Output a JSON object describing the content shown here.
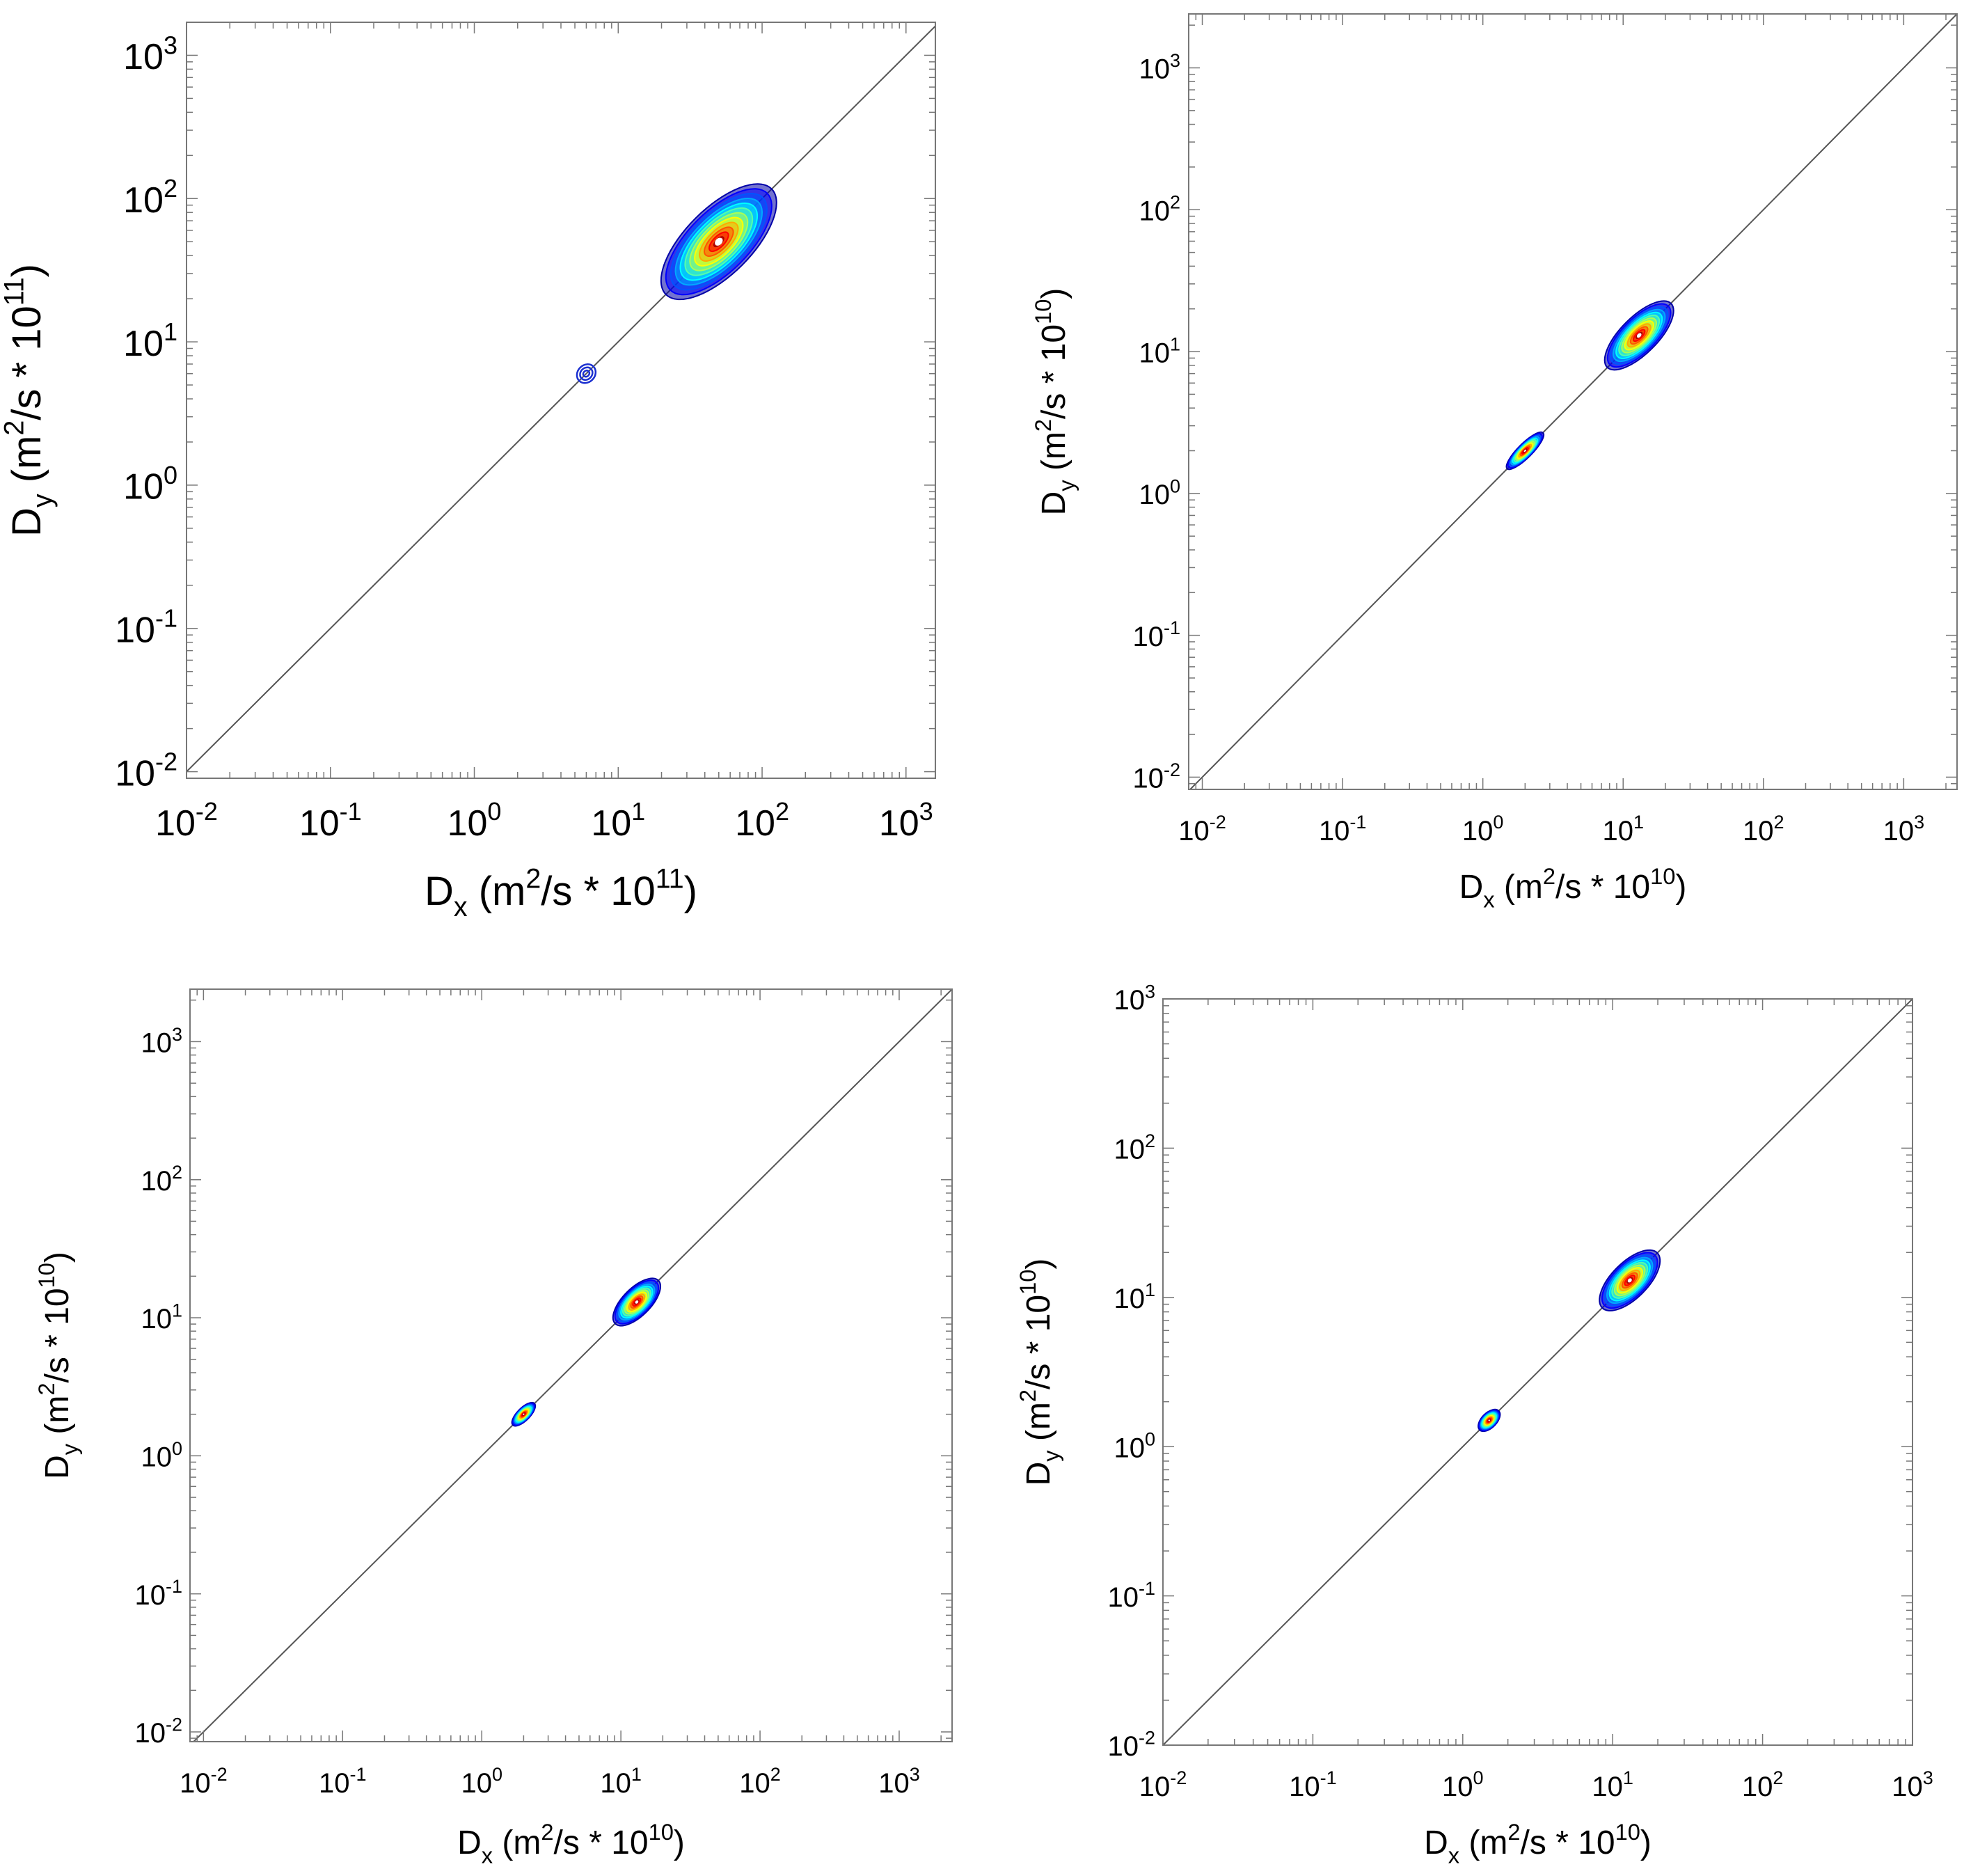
{
  "chart_data": [
    {
      "type": "contour",
      "scale": "log-log",
      "xlim": [
        0.01,
        1600
      ],
      "ylim": [
        0.009,
        1700
      ],
      "xticks": [
        0.01,
        0.1,
        1,
        10,
        100,
        1000
      ],
      "yticks": [
        0.01,
        0.1,
        1,
        10,
        100,
        1000
      ],
      "xtick_labels": [
        {
          "base": "10",
          "exp": "-2"
        },
        {
          "base": "10",
          "exp": "-1"
        },
        {
          "base": "10",
          "exp": "0"
        },
        {
          "base": "10",
          "exp": "1"
        },
        {
          "base": "10",
          "exp": "2"
        },
        {
          "base": "10",
          "exp": "3"
        }
      ],
      "ytick_labels": [
        {
          "base": "10",
          "exp": "-2"
        },
        {
          "base": "10",
          "exp": "-1"
        },
        {
          "base": "10",
          "exp": "0"
        },
        {
          "base": "10",
          "exp": "1"
        },
        {
          "base": "10",
          "exp": "2"
        },
        {
          "base": "10",
          "exp": "3"
        }
      ],
      "xlabel": {
        "main": "D",
        "sub": "x",
        "pre": " (m",
        "sup": "2",
        "post": "/s * 10",
        "sup2": "11",
        "end": ")"
      },
      "ylabel": {
        "main": "D",
        "sub": "y",
        "pre": " (m",
        "sup": "2",
        "post": "/s * 10",
        "sup2": "11",
        "end": ")"
      },
      "diagonal": "y = x",
      "clusters": [
        {
          "cx": 50,
          "cy": 50,
          "major_decades": 0.52,
          "minor_decades": 0.23
        },
        {
          "cx": 6,
          "cy": 6,
          "major_decades": 0.07,
          "minor_decades": 0.06,
          "outline_only": true
        }
      ]
    },
    {
      "type": "contour",
      "scale": "log-log",
      "xlim": [
        0.008,
        2400
      ],
      "ylim": [
        0.0082,
        2400
      ],
      "xticks": [
        0.01,
        0.1,
        1,
        10,
        100,
        1000
      ],
      "yticks": [
        0.01,
        0.1,
        1,
        10,
        100,
        1000
      ],
      "xtick_labels": [
        {
          "base": "10",
          "exp": "-2"
        },
        {
          "base": "10",
          "exp": "-1"
        },
        {
          "base": "10",
          "exp": "0"
        },
        {
          "base": "10",
          "exp": "1"
        },
        {
          "base": "10",
          "exp": "2"
        },
        {
          "base": "10",
          "exp": "3"
        }
      ],
      "ytick_labels": [
        {
          "base": "10",
          "exp": "-2"
        },
        {
          "base": "10",
          "exp": "-1"
        },
        {
          "base": "10",
          "exp": "0"
        },
        {
          "base": "10",
          "exp": "1"
        },
        {
          "base": "10",
          "exp": "2"
        },
        {
          "base": "10",
          "exp": "3"
        }
      ],
      "xlabel": {
        "main": "D",
        "sub": "x",
        "pre": " (m",
        "sup": "2",
        "post": "/s * 10",
        "sup2": "10",
        "end": ")"
      },
      "ylabel": {
        "main": "D",
        "sub": "y",
        "pre": " (m",
        "sup": "2",
        "post": "/s * 10",
        "sup2": "10",
        "end": ")"
      },
      "diagonal": "y = x",
      "clusters": [
        {
          "cx": 13,
          "cy": 13,
          "major_decades": 0.32,
          "minor_decades": 0.13
        },
        {
          "cx": 2,
          "cy": 2,
          "major_decades": 0.18,
          "minor_decades": 0.05
        }
      ]
    },
    {
      "type": "contour",
      "scale": "log-log",
      "xlim": [
        0.008,
        2400
      ],
      "ylim": [
        0.0085,
        2400
      ],
      "xticks": [
        0.01,
        0.1,
        1,
        10,
        100,
        1000
      ],
      "yticks": [
        0.01,
        0.1,
        1,
        10,
        100,
        1000
      ],
      "xtick_labels": [
        {
          "base": "10",
          "exp": "-2"
        },
        {
          "base": "10",
          "exp": "-1"
        },
        {
          "base": "10",
          "exp": "0"
        },
        {
          "base": "10",
          "exp": "1"
        },
        {
          "base": "10",
          "exp": "2"
        },
        {
          "base": "10",
          "exp": "3"
        }
      ],
      "ytick_labels": [
        {
          "base": "10",
          "exp": "-2"
        },
        {
          "base": "10",
          "exp": "-1"
        },
        {
          "base": "10",
          "exp": "0"
        },
        {
          "base": "10",
          "exp": "1"
        },
        {
          "base": "10",
          "exp": "2"
        },
        {
          "base": "10",
          "exp": "3"
        }
      ],
      "xlabel": {
        "main": "D",
        "sub": "x",
        "pre": " (m",
        "sup": "2",
        "post": "/s * 10",
        "sup2": "10",
        "end": ")"
      },
      "ylabel": {
        "main": "D",
        "sub": "y",
        "pre": " (m",
        "sup": "2",
        "post": "/s * 10",
        "sup2": "10",
        "end": ")"
      },
      "diagonal": "y = x",
      "clusters": [
        {
          "cx": 13,
          "cy": 13,
          "major_decades": 0.22,
          "minor_decades": 0.1
        },
        {
          "cx": 2,
          "cy": 2,
          "major_decades": 0.11,
          "minor_decades": 0.045
        }
      ]
    },
    {
      "type": "contour",
      "scale": "log-log",
      "xlim": [
        0.01,
        1000
      ],
      "ylim": [
        0.01,
        1000
      ],
      "xticks": [
        0.01,
        0.1,
        1,
        10,
        100,
        1000
      ],
      "yticks": [
        0.01,
        0.1,
        1,
        10,
        100,
        1000
      ],
      "xtick_labels": [
        {
          "base": "10",
          "exp": "-2"
        },
        {
          "base": "10",
          "exp": "-1"
        },
        {
          "base": "10",
          "exp": "0"
        },
        {
          "base": "10",
          "exp": "1"
        },
        {
          "base": "10",
          "exp": "2"
        },
        {
          "base": "10",
          "exp": "3"
        }
      ],
      "ytick_labels": [
        {
          "base": "10",
          "exp": "-2"
        },
        {
          "base": "10",
          "exp": "-1"
        },
        {
          "base": "10",
          "exp": "0"
        },
        {
          "base": "10",
          "exp": "1"
        },
        {
          "base": "10",
          "exp": "2"
        },
        {
          "base": "10",
          "exp": "3"
        }
      ],
      "xlabel": {
        "main": "D",
        "sub": "x",
        "pre": " (m",
        "sup": "2",
        "post": "/s * 10",
        "sup2": "10",
        "end": ")"
      },
      "ylabel": {
        "main": "D",
        "sub": "y",
        "pre": " (m",
        "sup": "2",
        "post": "/s * 10",
        "sup2": "10",
        "end": ")"
      },
      "diagonal": "y = x",
      "clusters": [
        {
          "cx": 13,
          "cy": 13,
          "major_decades": 0.26,
          "minor_decades": 0.12
        },
        {
          "cx": 1.5,
          "cy": 1.5,
          "major_decades": 0.09,
          "minor_decades": 0.05
        }
      ]
    }
  ]
}
